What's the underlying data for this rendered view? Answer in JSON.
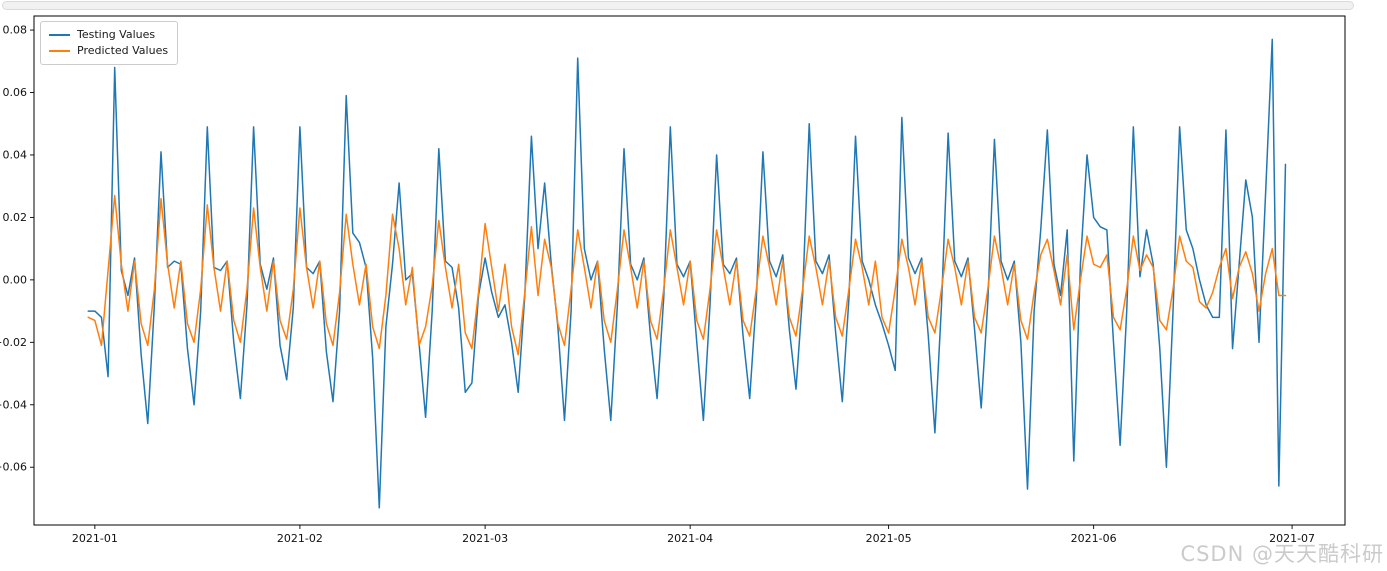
{
  "watermark": {
    "text": "CSDN @天天酷科研",
    "color": "#cbcbcb"
  },
  "legend": {
    "items": [
      {
        "label": "Testing Values",
        "color": "#1f77b4"
      },
      {
        "label": "Predicted Values",
        "color": "#ff7f0e"
      }
    ]
  },
  "chart_data": {
    "type": "line",
    "title": "",
    "xlabel": "",
    "ylabel": "",
    "grid": false,
    "legend_position": "upper-left",
    "x_unit": "day",
    "x_start_date": "2020-12-31",
    "x_day_offset": -1,
    "xlim_days_from_jan1": [
      -9.2,
      189.0
    ],
    "ylim": [
      -0.0785,
      0.0845
    ],
    "x_tick_days": [
      0,
      31,
      59,
      90,
      120,
      151,
      181
    ],
    "x_tick_labels": [
      "2021-01",
      "2021-02",
      "2021-03",
      "2021-04",
      "2021-05",
      "2021-06",
      "2021-07"
    ],
    "y_tick_values": [
      0.08,
      0.06,
      0.04,
      0.02,
      0.0,
      -0.02,
      -0.04,
      -0.06
    ],
    "y_tick_labels": [
      "0.08",
      "0.06",
      "0.04",
      "0.02",
      "0.00",
      "−0.02",
      "−0.04",
      "−0.06"
    ],
    "series": [
      {
        "name": "Testing Values",
        "color": "#1f77b4",
        "values": [
          -0.01,
          -0.01,
          -0.012,
          -0.031,
          0.068,
          0.003,
          -0.005,
          0.007,
          -0.024,
          -0.046,
          -0.008,
          0.041,
          0.004,
          0.006,
          0.005,
          -0.022,
          -0.04,
          -0.01,
          0.049,
          0.004,
          0.003,
          0.006,
          -0.02,
          -0.038,
          -0.008,
          0.049,
          0.005,
          -0.003,
          0.007,
          -0.021,
          -0.032,
          -0.009,
          0.049,
          0.004,
          0.002,
          0.006,
          -0.023,
          -0.039,
          -0.01,
          0.059,
          0.015,
          0.012,
          0.004,
          -0.025,
          -0.073,
          -0.015,
          0.005,
          0.031,
          0.0,
          0.002,
          -0.02,
          -0.044,
          -0.01,
          0.042,
          0.006,
          0.004,
          -0.009,
          -0.036,
          -0.033,
          -0.005,
          0.007,
          -0.004,
          -0.012,
          -0.008,
          -0.02,
          -0.036,
          -0.005,
          0.046,
          0.01,
          0.031,
          0.005,
          -0.015,
          -0.045,
          -0.01,
          0.071,
          0.01,
          0.0,
          0.006,
          -0.022,
          -0.045,
          -0.008,
          0.042,
          0.005,
          0.0,
          0.007,
          -0.018,
          -0.038,
          -0.006,
          0.049,
          0.005,
          0.001,
          0.006,
          -0.02,
          -0.045,
          -0.008,
          0.04,
          0.005,
          0.002,
          0.007,
          -0.018,
          -0.038,
          -0.006,
          0.041,
          0.006,
          0.001,
          0.008,
          -0.016,
          -0.035,
          -0.005,
          0.05,
          0.006,
          0.002,
          0.008,
          -0.017,
          -0.039,
          -0.006,
          0.046,
          0.006,
          0.0,
          -0.008,
          -0.014,
          -0.021,
          -0.029,
          0.052,
          0.007,
          0.002,
          0.007,
          -0.018,
          -0.049,
          -0.008,
          0.047,
          0.006,
          0.001,
          0.007,
          -0.016,
          -0.041,
          -0.007,
          0.045,
          0.006,
          0.0,
          0.006,
          -0.02,
          -0.067,
          -0.01,
          0.016,
          0.048,
          0.005,
          -0.005,
          0.016,
          -0.058,
          0.005,
          0.04,
          0.02,
          0.017,
          0.016,
          -0.02,
          -0.053,
          -0.01,
          0.049,
          0.001,
          0.016,
          0.005,
          -0.022,
          -0.06,
          -0.01,
          0.049,
          0.016,
          0.01,
          0.0,
          -0.008,
          -0.012,
          -0.012,
          0.048,
          -0.022,
          0.005,
          0.032,
          0.02,
          -0.02,
          0.028,
          0.077,
          -0.066,
          0.037
        ]
      },
      {
        "name": "Predicted Values",
        "color": "#ff7f0e",
        "values": [
          -0.012,
          -0.013,
          -0.021,
          0.003,
          0.027,
          0.005,
          -0.01,
          0.006,
          -0.014,
          -0.021,
          -0.003,
          0.026,
          0.005,
          -0.009,
          0.006,
          -0.014,
          -0.02,
          -0.003,
          0.024,
          0.004,
          -0.01,
          0.006,
          -0.013,
          -0.02,
          -0.003,
          0.023,
          0.004,
          -0.01,
          0.006,
          -0.013,
          -0.019,
          -0.003,
          0.023,
          0.004,
          -0.009,
          0.006,
          -0.014,
          -0.021,
          -0.004,
          0.021,
          0.005,
          -0.008,
          0.005,
          -0.015,
          -0.022,
          -0.005,
          0.021,
          0.01,
          -0.008,
          0.004,
          -0.021,
          -0.015,
          -0.002,
          0.019,
          0.004,
          -0.009,
          0.005,
          -0.017,
          -0.022,
          -0.004,
          0.018,
          0.004,
          -0.01,
          0.005,
          -0.015,
          -0.024,
          -0.004,
          0.017,
          -0.005,
          0.013,
          0.004,
          -0.014,
          -0.021,
          -0.003,
          0.016,
          0.004,
          -0.009,
          0.006,
          -0.013,
          -0.02,
          -0.003,
          0.016,
          0.004,
          -0.009,
          0.006,
          -0.013,
          -0.019,
          -0.003,
          0.016,
          0.004,
          -0.008,
          0.006,
          -0.013,
          -0.019,
          -0.003,
          0.016,
          0.004,
          -0.008,
          0.006,
          -0.013,
          -0.018,
          -0.003,
          0.014,
          0.004,
          -0.008,
          0.006,
          -0.012,
          -0.018,
          -0.003,
          0.014,
          0.004,
          -0.008,
          0.006,
          -0.012,
          -0.018,
          -0.003,
          0.013,
          0.004,
          -0.008,
          0.006,
          -0.012,
          -0.017,
          -0.003,
          0.013,
          0.004,
          -0.008,
          0.006,
          -0.012,
          -0.017,
          -0.003,
          0.013,
          0.004,
          -0.008,
          0.006,
          -0.012,
          -0.017,
          -0.003,
          0.014,
          0.004,
          -0.008,
          0.005,
          -0.013,
          -0.019,
          -0.004,
          0.008,
          0.013,
          0.003,
          -0.008,
          0.008,
          -0.016,
          0.0,
          0.014,
          0.005,
          0.004,
          0.008,
          -0.012,
          -0.016,
          -0.003,
          0.014,
          0.003,
          0.008,
          0.004,
          -0.013,
          -0.016,
          -0.003,
          0.014,
          0.006,
          0.004,
          -0.007,
          -0.009,
          -0.004,
          0.004,
          0.01,
          -0.006,
          0.004,
          0.009,
          0.002,
          -0.01,
          0.002,
          0.01,
          -0.005,
          -0.005
        ]
      }
    ]
  }
}
